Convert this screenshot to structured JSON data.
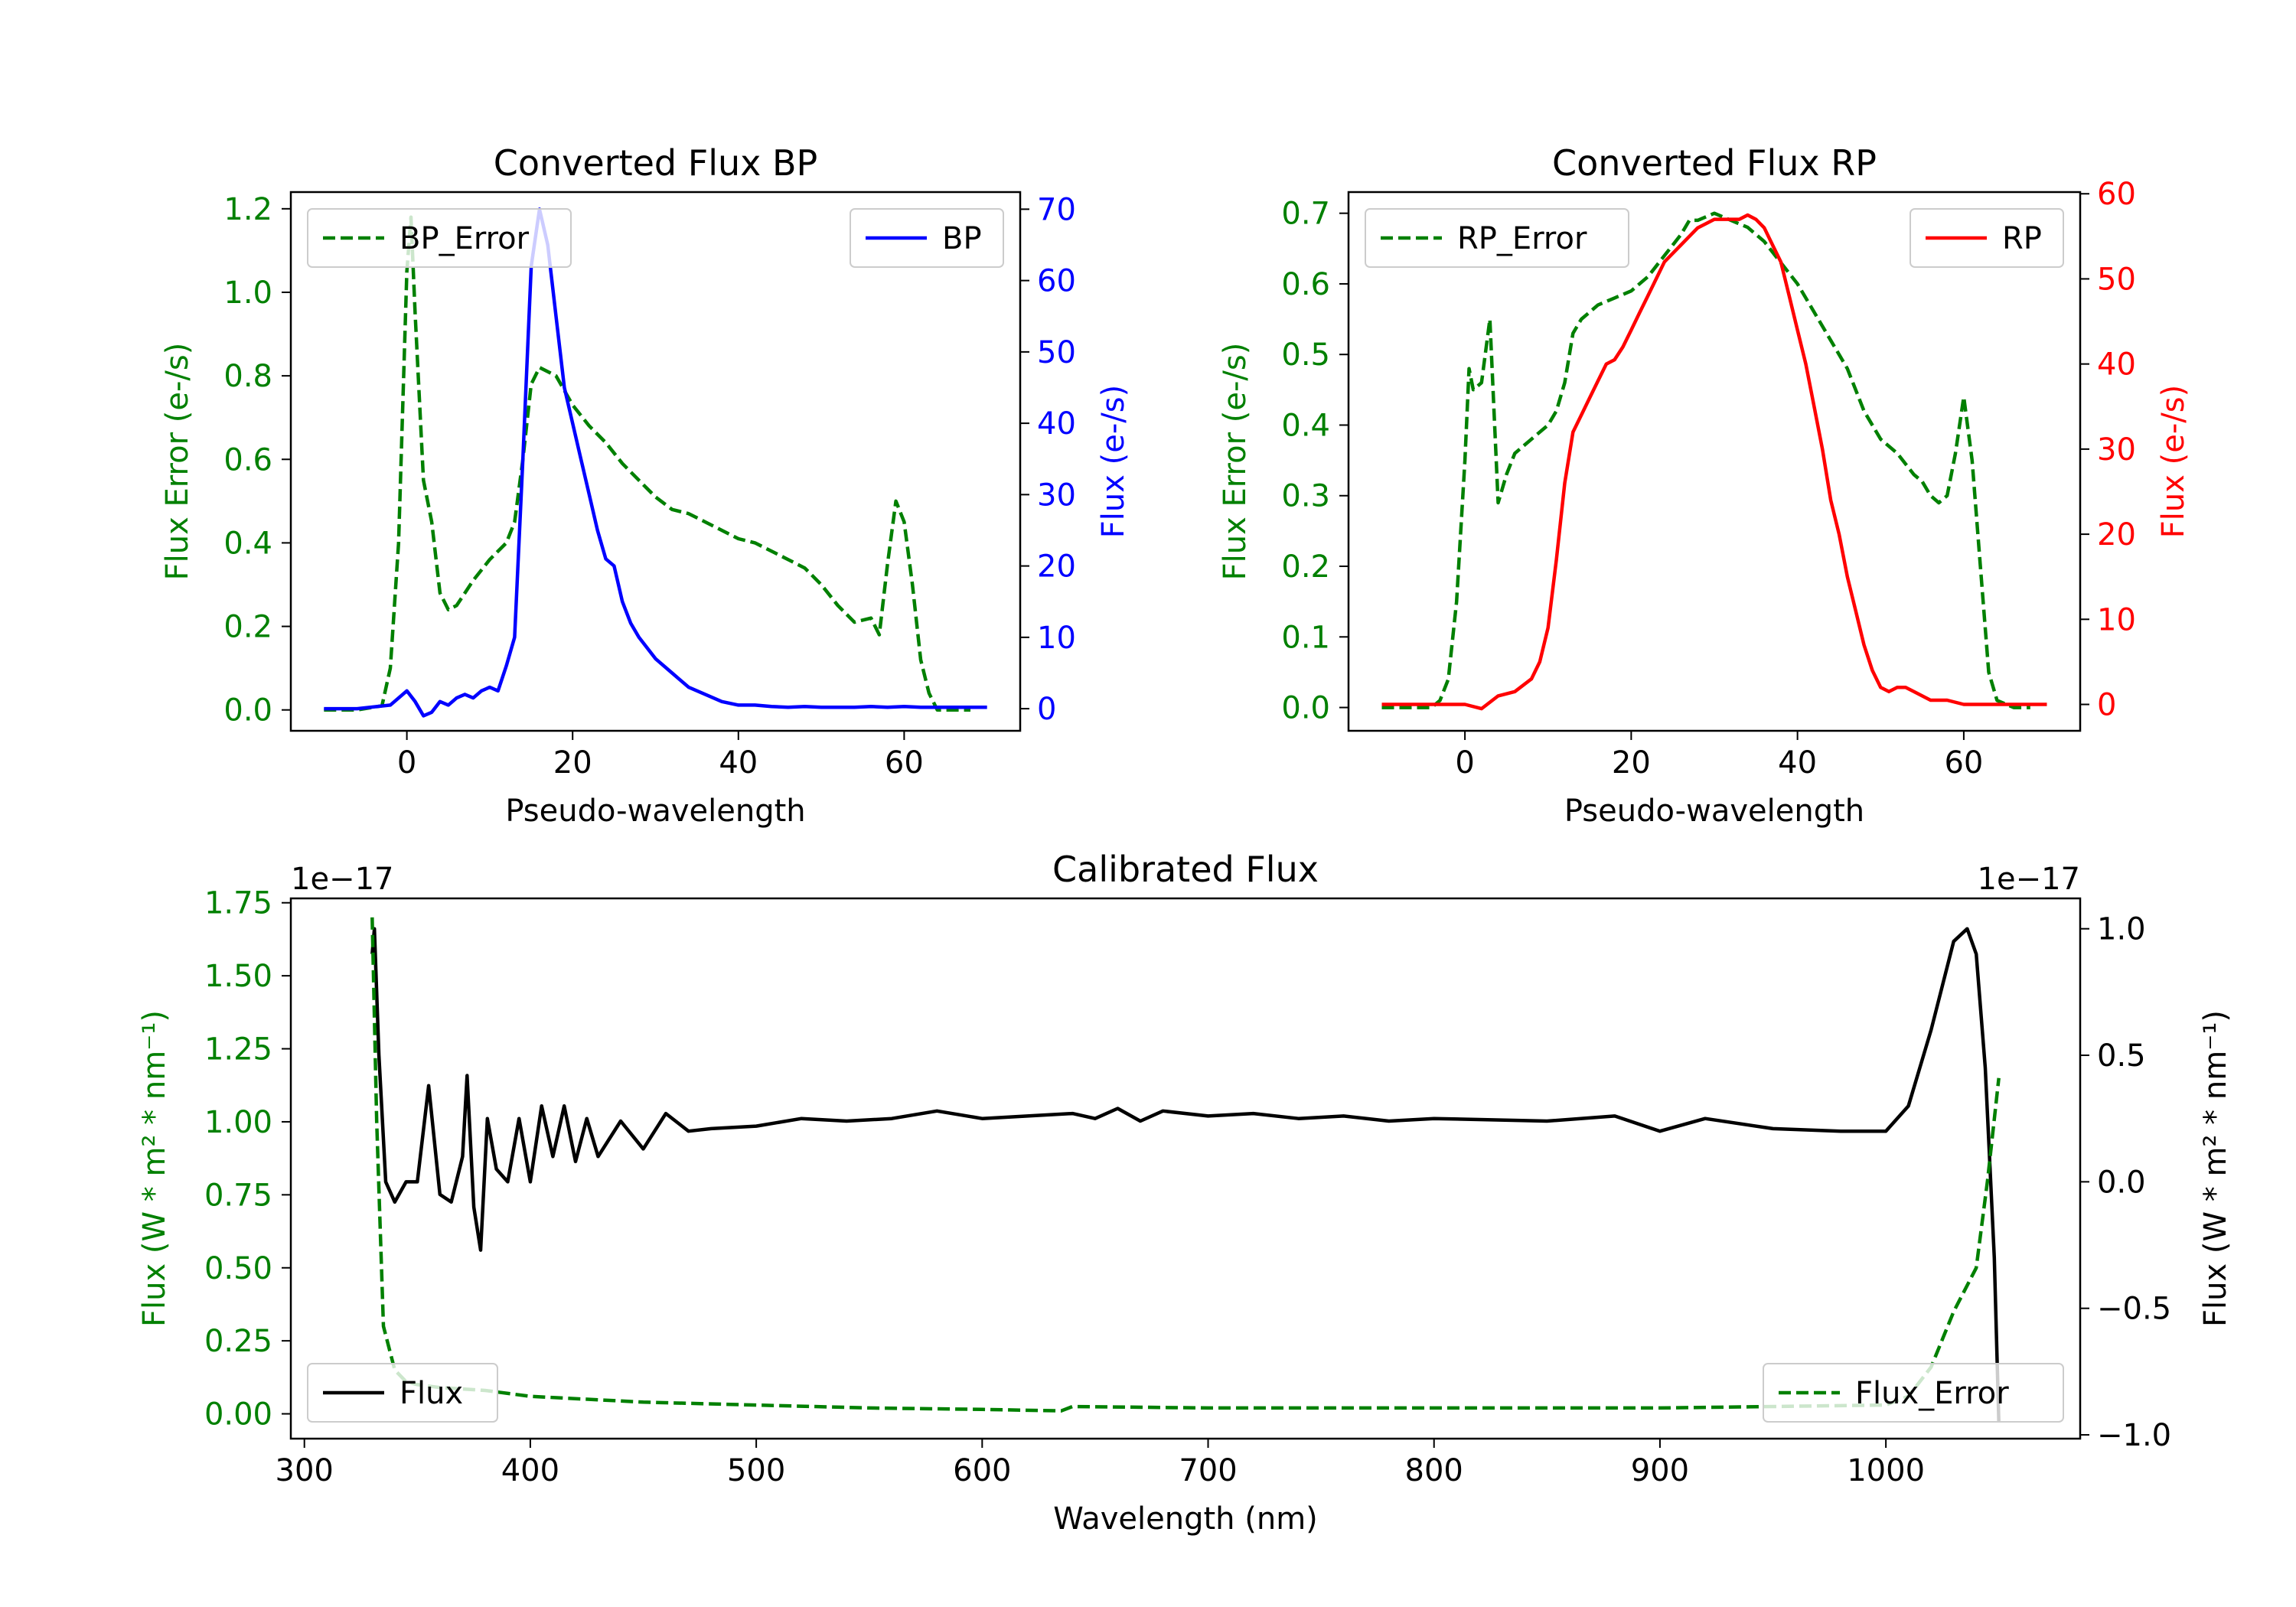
{
  "colors": {
    "green": "#008000",
    "blue": "#0000ff",
    "red": "#ff0000",
    "black": "#000000"
  },
  "chart_data": [
    {
      "id": "bp",
      "type": "line",
      "title": "Converted Flux BP",
      "xlabel": "Pseudo-wavelength",
      "ylabel_left": "Flux Error (e-/s)",
      "ylabel_right": "Flux (e-/s)",
      "xlim": [
        -14,
        74
      ],
      "ylim_left": [
        -0.05,
        1.24
      ],
      "ylim_right": [
        -3.1,
        72.4
      ],
      "xticks": [
        "0",
        "20",
        "40",
        "60"
      ],
      "yticks_left": [
        "0.0",
        "0.2",
        "0.4",
        "0.6",
        "0.8",
        "1.0",
        "1.2"
      ],
      "yticks_right": [
        "0",
        "10",
        "20",
        "30",
        "40",
        "50",
        "60",
        "70"
      ],
      "legend_left": "BP_Error",
      "legend_right": "BP",
      "series": [
        {
          "name": "BP_Error",
          "axis": "left",
          "color": "#008000",
          "style": "dashed",
          "x": [
            -10,
            -6,
            -3,
            -2,
            -1,
            0,
            0.5,
            1,
            2,
            3,
            4,
            5,
            6,
            8,
            10,
            12,
            13,
            14,
            15,
            16,
            18,
            20,
            22,
            24,
            26,
            28,
            30,
            32,
            34,
            36,
            38,
            40,
            42,
            44,
            46,
            48,
            50,
            52,
            54,
            56,
            57,
            58,
            59,
            60,
            61,
            62,
            63,
            64,
            66,
            68
          ],
          "y": [
            0.0,
            0.0,
            0.01,
            0.1,
            0.4,
            1.05,
            1.18,
            0.95,
            0.55,
            0.45,
            0.28,
            0.24,
            0.25,
            0.31,
            0.36,
            0.4,
            0.45,
            0.6,
            0.78,
            0.82,
            0.8,
            0.73,
            0.68,
            0.64,
            0.59,
            0.55,
            0.51,
            0.48,
            0.47,
            0.45,
            0.43,
            0.41,
            0.4,
            0.38,
            0.36,
            0.34,
            0.3,
            0.25,
            0.21,
            0.22,
            0.18,
            0.35,
            0.5,
            0.45,
            0.3,
            0.12,
            0.04,
            0.0,
            0.0,
            0.0
          ]
        },
        {
          "name": "BP",
          "axis": "right",
          "color": "#0000ff",
          "style": "solid",
          "x": [
            -10,
            -6,
            -2,
            0,
            1,
            2,
            3,
            4,
            5,
            6,
            7,
            8,
            9,
            10,
            11,
            12,
            13,
            14,
            15,
            16,
            17,
            18,
            19,
            20,
            21,
            22,
            23,
            24,
            25,
            26,
            27,
            28,
            30,
            32,
            34,
            36,
            38,
            40,
            42,
            44,
            46,
            48,
            50,
            52,
            54,
            56,
            58,
            60,
            62,
            64,
            66,
            70
          ],
          "y": [
            0,
            0,
            0.5,
            2.5,
            1,
            -1,
            -0.5,
            1,
            0.5,
            1.5,
            2,
            1.5,
            2.5,
            3,
            2.5,
            6,
            10,
            35,
            62,
            70,
            65,
            55,
            45,
            40,
            35,
            30,
            25,
            21,
            20,
            15,
            12,
            10,
            7,
            5,
            3,
            2,
            1,
            0.5,
            0.5,
            0.3,
            0.2,
            0.3,
            0.2,
            0.2,
            0.2,
            0.3,
            0.2,
            0.3,
            0.2,
            0.2,
            0.2,
            0.2
          ]
        }
      ]
    },
    {
      "id": "rp",
      "type": "line",
      "title": "Converted Flux RP",
      "xlabel": "Pseudo-wavelength",
      "ylabel_left": "Flux Error (e-/s)",
      "ylabel_right": "Flux (e-/s)",
      "xlim": [
        -14,
        74
      ],
      "ylim_left": [
        -0.033,
        0.73
      ],
      "ylim_right": [
        -3.1,
        60.2
      ],
      "xticks": [
        "0",
        "20",
        "40",
        "60"
      ],
      "yticks_left": [
        "0.0",
        "0.1",
        "0.2",
        "0.3",
        "0.4",
        "0.5",
        "0.6",
        "0.7"
      ],
      "yticks_right": [
        "0",
        "10",
        "20",
        "30",
        "40",
        "50",
        "60"
      ],
      "legend_left": "RP_Error",
      "legend_right": "RP",
      "series": [
        {
          "name": "RP_Error",
          "axis": "left",
          "color": "#008000",
          "style": "dashed",
          "x": [
            -10,
            -6,
            -4,
            -3,
            -2,
            -1,
            0,
            0.5,
            1,
            2,
            3,
            4,
            5,
            6,
            8,
            10,
            11,
            12,
            13,
            14,
            15,
            16,
            18,
            20,
            22,
            24,
            26,
            27,
            28,
            30,
            32,
            34,
            36,
            38,
            40,
            42,
            44,
            46,
            48,
            50,
            52,
            54,
            55,
            56,
            57,
            58,
            59,
            60,
            61,
            62,
            63,
            64,
            66,
            68
          ],
          "y": [
            0,
            0,
            0,
            0.01,
            0.04,
            0.15,
            0.35,
            0.48,
            0.45,
            0.46,
            0.55,
            0.29,
            0.33,
            0.36,
            0.38,
            0.4,
            0.42,
            0.46,
            0.53,
            0.55,
            0.56,
            0.57,
            0.58,
            0.59,
            0.61,
            0.64,
            0.67,
            0.69,
            0.69,
            0.7,
            0.69,
            0.68,
            0.66,
            0.63,
            0.6,
            0.56,
            0.52,
            0.48,
            0.42,
            0.38,
            0.36,
            0.33,
            0.32,
            0.3,
            0.29,
            0.3,
            0.36,
            0.44,
            0.35,
            0.2,
            0.05,
            0.01,
            0,
            0
          ]
        },
        {
          "name": "RP",
          "axis": "right",
          "color": "#ff0000",
          "style": "solid",
          "x": [
            -10,
            -4,
            0,
            2,
            4,
            6,
            8,
            9,
            10,
            11,
            12,
            13,
            14,
            15,
            16,
            17,
            18,
            19,
            20,
            21,
            22,
            23,
            24,
            25,
            26,
            27,
            28,
            29,
            30,
            31,
            32,
            33,
            34,
            35,
            36,
            37,
            38,
            39,
            40,
            41,
            42,
            43,
            44,
            45,
            46,
            47,
            48,
            49,
            50,
            51,
            52,
            53,
            54,
            55,
            56,
            58,
            60,
            62,
            66,
            70
          ],
          "y": [
            0,
            0,
            0,
            -0.5,
            1,
            1.5,
            3,
            5,
            9,
            17,
            26,
            32,
            34,
            36,
            38,
            40,
            40.5,
            42,
            44,
            46,
            48,
            50,
            52,
            53,
            54,
            55,
            56,
            56.5,
            57,
            57,
            57,
            57,
            57.5,
            57,
            56,
            54,
            52,
            48,
            44,
            40,
            35,
            30,
            24,
            20,
            15,
            11,
            7,
            4,
            2,
            1.5,
            2,
            2,
            1.5,
            1,
            0.5,
            0.5,
            0,
            0,
            0,
            0
          ]
        }
      ]
    },
    {
      "id": "cal",
      "type": "line",
      "title": "Calibrated Flux",
      "xlabel": "Wavelength (nm)",
      "ylabel_left": "Flux (W * m² * nm⁻¹)",
      "ylabel_right": "Flux (W * m² * nm⁻¹)",
      "offset_left": "1e−17",
      "offset_right": "1e−17",
      "xlim": [
        294,
        1086
      ],
      "ylim_left": [
        -0.085,
        1.765
      ],
      "ylim_right": [
        -1.015,
        1.12
      ],
      "xticks": [
        "300",
        "400",
        "500",
        "600",
        "700",
        "800",
        "900",
        "1000"
      ],
      "yticks_left": [
        "0.00",
        "0.25",
        "0.50",
        "0.75",
        "1.00",
        "1.25",
        "1.50",
        "1.75"
      ],
      "yticks_right": [
        "−1.0",
        "−0.5",
        "0.0",
        "0.5",
        "1.0"
      ],
      "legend_left": "Flux",
      "legend_right": "Flux_Error",
      "series": [
        {
          "name": "Flux",
          "axis": "right",
          "color": "#000000",
          "style": "solid",
          "x": [
            330,
            331,
            333,
            336,
            340,
            345,
            350,
            355,
            360,
            365,
            370,
            372,
            375,
            378,
            381,
            385,
            390,
            395,
            400,
            405,
            410,
            415,
            420,
            425,
            430,
            440,
            450,
            460,
            470,
            480,
            500,
            520,
            540,
            560,
            580,
            600,
            620,
            640,
            650,
            660,
            670,
            680,
            700,
            720,
            740,
            760,
            780,
            800,
            850,
            880,
            900,
            920,
            950,
            980,
            1000,
            1010,
            1020,
            1030,
            1036,
            1040,
            1044,
            1048,
            1050
          ],
          "y": [
            0.9,
            1.0,
            0.5,
            0.0,
            -0.08,
            0.0,
            0.0,
            0.38,
            -0.05,
            -0.08,
            0.1,
            0.42,
            -0.1,
            -0.27,
            0.25,
            0.05,
            0.0,
            0.25,
            0.0,
            0.3,
            0.1,
            0.3,
            0.08,
            0.25,
            0.1,
            0.24,
            0.13,
            0.27,
            0.2,
            0.21,
            0.22,
            0.25,
            0.24,
            0.25,
            0.28,
            0.25,
            0.26,
            0.27,
            0.25,
            0.29,
            0.24,
            0.28,
            0.26,
            0.27,
            0.25,
            0.26,
            0.24,
            0.25,
            0.24,
            0.26,
            0.2,
            0.25,
            0.21,
            0.2,
            0.2,
            0.3,
            0.6,
            0.95,
            1.0,
            0.9,
            0.45,
            -0.3,
            -0.95
          ]
        },
        {
          "name": "Flux_Error",
          "axis": "left",
          "color": "#008000",
          "style": "dashed",
          "x": [
            330,
            332,
            335,
            340,
            345,
            350,
            360,
            380,
            400,
            450,
            500,
            550,
            600,
            635,
            640,
            700,
            800,
            900,
            1000,
            1010,
            1020,
            1030,
            1040,
            1045,
            1050
          ],
          "y": [
            1.7,
            1.0,
            0.3,
            0.15,
            0.11,
            0.1,
            0.09,
            0.08,
            0.06,
            0.04,
            0.03,
            0.02,
            0.015,
            0.01,
            0.025,
            0.02,
            0.02,
            0.02,
            0.03,
            0.06,
            0.16,
            0.35,
            0.5,
            0.8,
            1.15
          ]
        }
      ]
    }
  ]
}
